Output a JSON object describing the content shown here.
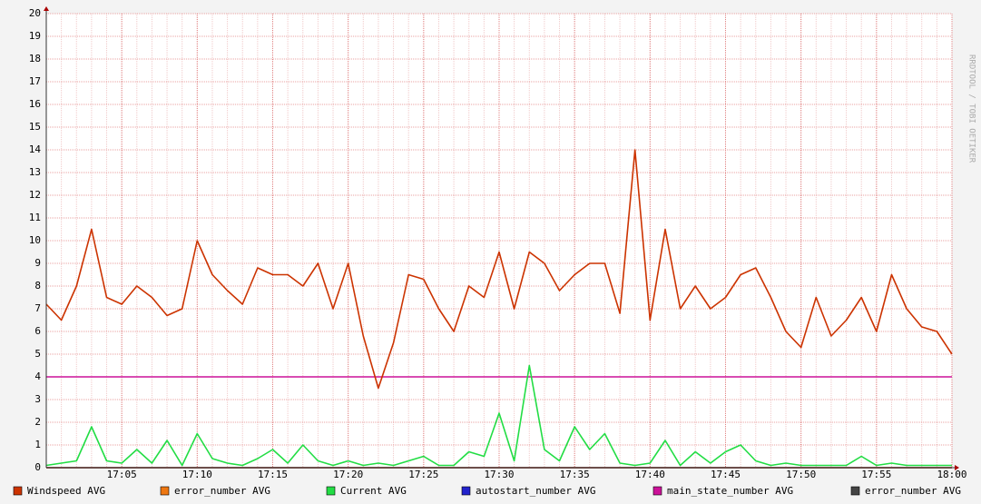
{
  "chart_data": {
    "type": "line",
    "watermark": "RRDTOOL / TOBI OETIKER",
    "x": [
      "17:00",
      "17:01",
      "17:02",
      "17:03",
      "17:04",
      "17:05",
      "17:06",
      "17:07",
      "17:08",
      "17:09",
      "17:10",
      "17:11",
      "17:12",
      "17:13",
      "17:14",
      "17:15",
      "17:16",
      "17:17",
      "17:18",
      "17:19",
      "17:20",
      "17:21",
      "17:22",
      "17:23",
      "17:24",
      "17:25",
      "17:26",
      "17:27",
      "17:28",
      "17:29",
      "17:30",
      "17:31",
      "17:32",
      "17:33",
      "17:34",
      "17:35",
      "17:36",
      "17:37",
      "17:38",
      "17:39",
      "17:40",
      "17:41",
      "17:42",
      "17:43",
      "17:44",
      "17:45",
      "17:46",
      "17:47",
      "17:48",
      "17:49",
      "17:50",
      "17:51",
      "17:52",
      "17:53",
      "17:54",
      "17:55",
      "17:56",
      "17:57",
      "17:58",
      "17:59",
      "18:00"
    ],
    "series": [
      {
        "name": "Windspeed AVG",
        "color": "#cc3300",
        "values": [
          7.2,
          6.5,
          8.0,
          10.5,
          7.5,
          7.2,
          8.0,
          7.5,
          6.7,
          7.0,
          10.0,
          8.5,
          7.8,
          7.2,
          8.8,
          8.5,
          8.5,
          8.0,
          9.0,
          7.0,
          9.0,
          5.8,
          3.5,
          5.5,
          8.5,
          8.3,
          7.0,
          6.0,
          8.0,
          7.5,
          9.5,
          7.0,
          9.5,
          9.0,
          7.8,
          8.5,
          9.0,
          9.0,
          6.8,
          14.0,
          6.5,
          10.5,
          7.0,
          8.0,
          7.0,
          7.5,
          8.5,
          8.8,
          7.5,
          6.0,
          5.3,
          7.5,
          5.8,
          6.5,
          7.5,
          6.0,
          8.5,
          7.0,
          6.2,
          6.0,
          5.0
        ]
      },
      {
        "name": "error_number AVG",
        "color": "#ee7711",
        "values": [
          0,
          0,
          0,
          0,
          0,
          0,
          0,
          0,
          0,
          0,
          0,
          0,
          0,
          0,
          0,
          0,
          0,
          0,
          0,
          0,
          0,
          0,
          0,
          0,
          0,
          0,
          0,
          0,
          0,
          0,
          0,
          0,
          0,
          0,
          0,
          0,
          0,
          0,
          0,
          0,
          0,
          0,
          0,
          0,
          0,
          0,
          0,
          0,
          0,
          0,
          0,
          0,
          0,
          0,
          0,
          0,
          0,
          0,
          0,
          0,
          0
        ]
      },
      {
        "name": "Current AVG",
        "color": "#22dd44",
        "values": [
          0.1,
          0.2,
          0.3,
          1.8,
          0.3,
          0.2,
          0.8,
          0.2,
          1.2,
          0.1,
          1.5,
          0.4,
          0.2,
          0.1,
          0.4,
          0.8,
          0.2,
          1.0,
          0.3,
          0.1,
          0.3,
          0.1,
          0.2,
          0.1,
          0.3,
          0.5,
          0.1,
          0.1,
          0.7,
          0.5,
          2.4,
          0.3,
          4.5,
          0.8,
          0.3,
          1.8,
          0.8,
          1.5,
          0.2,
          0.1,
          0.2,
          1.2,
          0.1,
          0.7,
          0.2,
          0.7,
          1.0,
          0.3,
          0.1,
          0.2,
          0.1,
          0.1,
          0.1,
          0.1,
          0.5,
          0.1,
          0.2,
          0.1,
          0.1,
          0.1,
          0.1
        ]
      },
      {
        "name": "autostart_number AVG",
        "color": "#2222cc",
        "values": [
          0,
          0,
          0,
          0,
          0,
          0,
          0,
          0,
          0,
          0,
          0,
          0,
          0,
          0,
          0,
          0,
          0,
          0,
          0,
          0,
          0,
          0,
          0,
          0,
          0,
          0,
          0,
          0,
          0,
          0,
          0,
          0,
          0,
          0,
          0,
          0,
          0,
          0,
          0,
          0,
          0,
          0,
          0,
          0,
          0,
          0,
          0,
          0,
          0,
          0,
          0,
          0,
          0,
          0,
          0,
          0,
          0,
          0,
          0,
          0,
          0
        ]
      },
      {
        "name": "main_state_number AVG",
        "color": "#cc1199",
        "values": [
          4,
          4,
          4,
          4,
          4,
          4,
          4,
          4,
          4,
          4,
          4,
          4,
          4,
          4,
          4,
          4,
          4,
          4,
          4,
          4,
          4,
          4,
          4,
          4,
          4,
          4,
          4,
          4,
          4,
          4,
          4,
          4,
          4,
          4,
          4,
          4,
          4,
          4,
          4,
          4,
          4,
          4,
          4,
          4,
          4,
          4,
          4,
          4,
          4,
          4,
          4,
          4,
          4,
          4,
          4,
          4,
          4,
          4,
          4,
          4,
          4
        ]
      },
      {
        "name": "error_number AVG",
        "color": "#444444",
        "values": [
          0,
          0,
          0,
          0,
          0,
          0,
          0,
          0,
          0,
          0,
          0,
          0,
          0,
          0,
          0,
          0,
          0,
          0,
          0,
          0,
          0,
          0,
          0,
          0,
          0,
          0,
          0,
          0,
          0,
          0,
          0,
          0,
          0,
          0,
          0,
          0,
          0,
          0,
          0,
          0,
          0,
          0,
          0,
          0,
          0,
          0,
          0,
          0,
          0,
          0,
          0,
          0,
          0,
          0,
          0,
          0,
          0,
          0,
          0,
          0,
          0
        ]
      }
    ],
    "xlim": [
      "17:00",
      "18:00"
    ],
    "xticks": [
      "17:05",
      "17:10",
      "17:15",
      "17:20",
      "17:25",
      "17:30",
      "17:35",
      "17:40",
      "17:45",
      "17:50",
      "17:55",
      "18:00"
    ],
    "ylim": [
      0,
      20
    ],
    "yticks": [
      0,
      1,
      2,
      3,
      4,
      5,
      6,
      7,
      8,
      9,
      10,
      11,
      12,
      13,
      14,
      15,
      16,
      17,
      18,
      19,
      20
    ],
    "grid": true
  }
}
